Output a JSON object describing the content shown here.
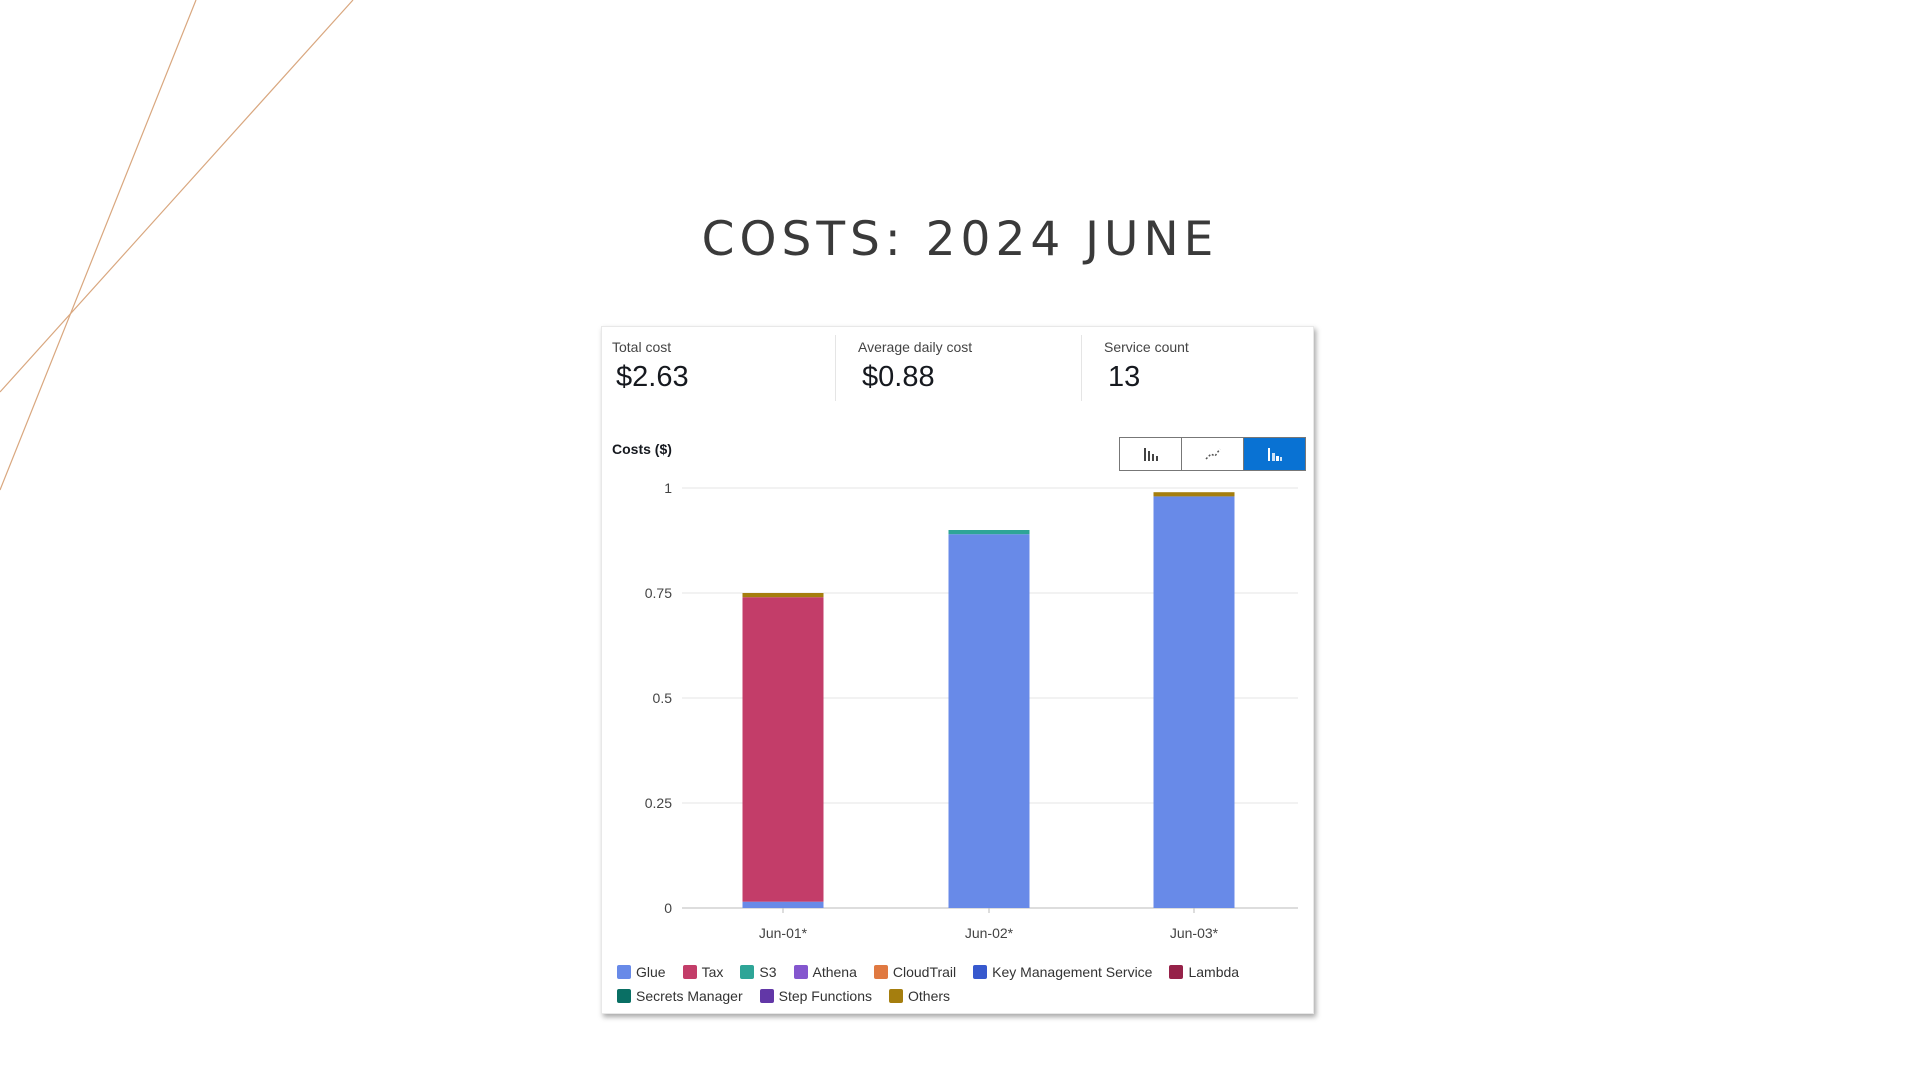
{
  "slide": {
    "title": "COSTS: 2024 JUNE",
    "decor_color": "#d9a77f"
  },
  "summary": [
    {
      "label": "Total cost",
      "value": "$2.63"
    },
    {
      "label": "Average daily cost",
      "value": "$0.88"
    },
    {
      "label": "Service count",
      "value": "13"
    }
  ],
  "chart_toggle": {
    "options": [
      "bar-chart-icon",
      "line-chart-icon",
      "stacked-bar-chart-icon"
    ],
    "selected": "stacked-bar-chart-icon"
  },
  "chart_data": {
    "type": "bar",
    "stacked": true,
    "title": "Costs ($)",
    "xlabel": "",
    "ylabel": "",
    "categories": [
      "Jun-01*",
      "Jun-02*",
      "Jun-03*"
    ],
    "ylim": [
      0,
      1
    ],
    "yticks": [
      "0",
      "0.25",
      "0.5",
      "0.75",
      "1"
    ],
    "grid": true,
    "legend_position": "bottom",
    "series": [
      {
        "name": "Glue",
        "color": "#688ae8",
        "values": [
          0.015,
          0.89,
          0.98
        ]
      },
      {
        "name": "Tax",
        "color": "#c33d69",
        "values": [
          0.725,
          0,
          0
        ]
      },
      {
        "name": "S3",
        "color": "#2ea597",
        "values": [
          0,
          0.01,
          0
        ]
      },
      {
        "name": "Athena",
        "color": "#8456ce",
        "values": [
          0,
          0,
          0
        ]
      },
      {
        "name": "CloudTrail",
        "color": "#e07941",
        "values": [
          0,
          0,
          0
        ]
      },
      {
        "name": "Key Management Service",
        "color": "#3759ce",
        "values": [
          0,
          0,
          0
        ]
      },
      {
        "name": "Lambda",
        "color": "#962249",
        "values": [
          0,
          0,
          0
        ]
      },
      {
        "name": "Secrets Manager",
        "color": "#096f64",
        "values": [
          0,
          0,
          0
        ]
      },
      {
        "name": "Step Functions",
        "color": "#6237a7",
        "values": [
          0,
          0,
          0
        ]
      },
      {
        "name": "Others",
        "color": "#a57e0e",
        "values": [
          0.01,
          0,
          0.01
        ]
      }
    ]
  }
}
